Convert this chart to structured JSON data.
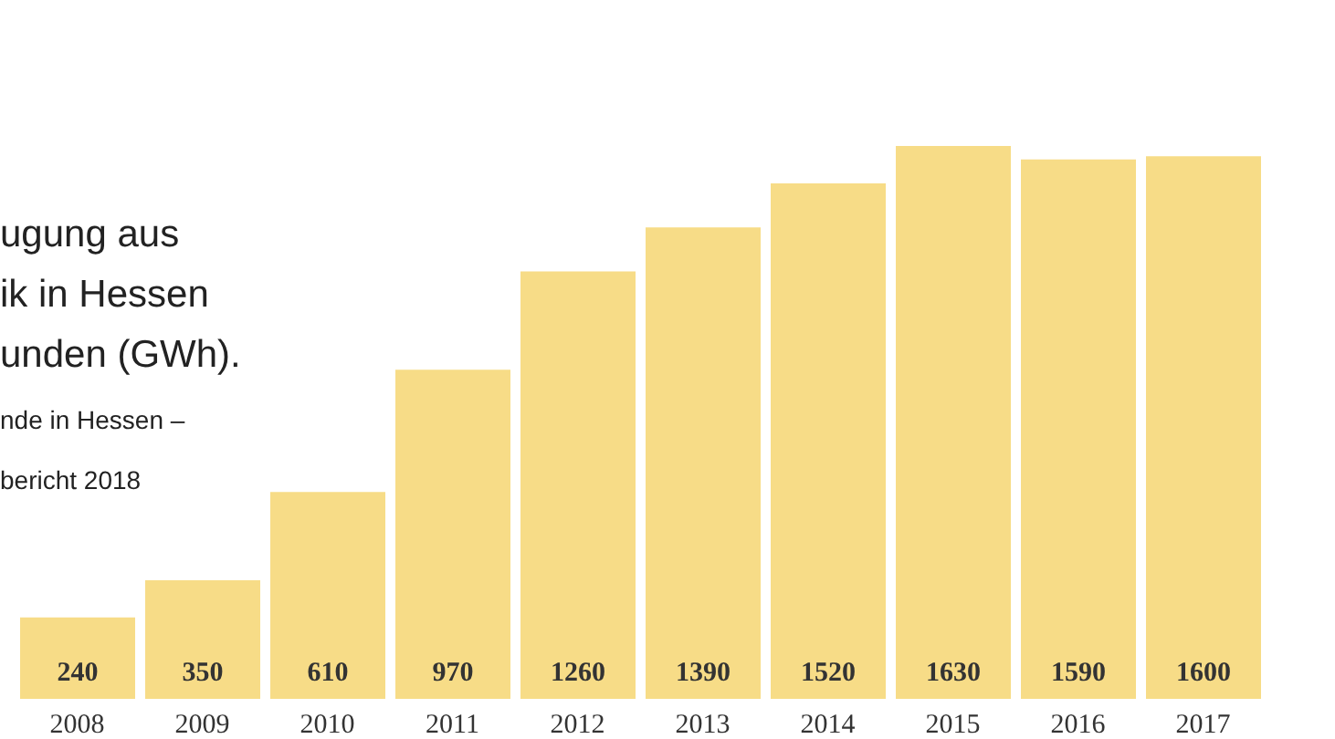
{
  "chart_data": {
    "type": "bar",
    "title": "ugung aus\nik in Hessen\nunden (GWh).",
    "subtitle": "nde in Hessen –\nbericht 2018",
    "categories": [
      "2008",
      "2009",
      "2010",
      "2011",
      "2012",
      "2013",
      "2014",
      "2015",
      "2016",
      "2017"
    ],
    "values": [
      240,
      350,
      610,
      970,
      1260,
      1390,
      1520,
      1630,
      1590,
      1600
    ],
    "color": "#f7dc87",
    "data_labels": true
  }
}
